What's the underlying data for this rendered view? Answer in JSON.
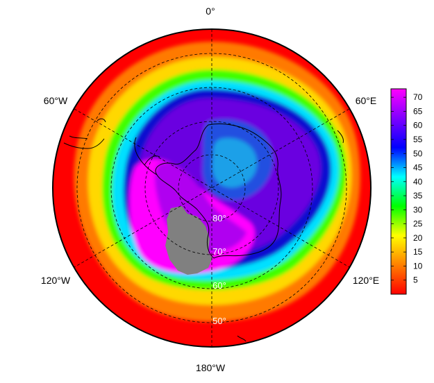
{
  "map": {
    "projection": "south-polar-stereographic",
    "longitude_labels": [
      {
        "lon": 0,
        "text": "0°"
      },
      {
        "lon": -60,
        "text": "60°W"
      },
      {
        "lon": 60,
        "text": "60°E"
      },
      {
        "lon": -120,
        "text": "120°W"
      },
      {
        "lon": 120,
        "text": "120°E"
      },
      {
        "lon": 180,
        "text": "180°W"
      }
    ],
    "latitude_labels": [
      {
        "lat": -80,
        "text": "80°"
      },
      {
        "lat": -70,
        "text": "70°"
      },
      {
        "lat": -60,
        "text": "60°"
      },
      {
        "lat": -50,
        "text": "50°"
      }
    ],
    "no_data_color": "#808080"
  },
  "colorbar": {
    "range": [
      0,
      73
    ],
    "ticks": [
      5,
      10,
      15,
      20,
      25,
      30,
      35,
      40,
      45,
      50,
      55,
      60,
      65,
      70
    ],
    "tick_labels": [
      "5",
      "10",
      "15",
      "20",
      "25",
      "30",
      "35",
      "40",
      "45",
      "50",
      "55",
      "60",
      "65",
      "70"
    ],
    "colors": [
      "#ff0000",
      "#ff8000",
      "#ffff00",
      "#00ff00",
      "#00ffff",
      "#0000ff",
      "#8000ff",
      "#ff00ff"
    ]
  }
}
